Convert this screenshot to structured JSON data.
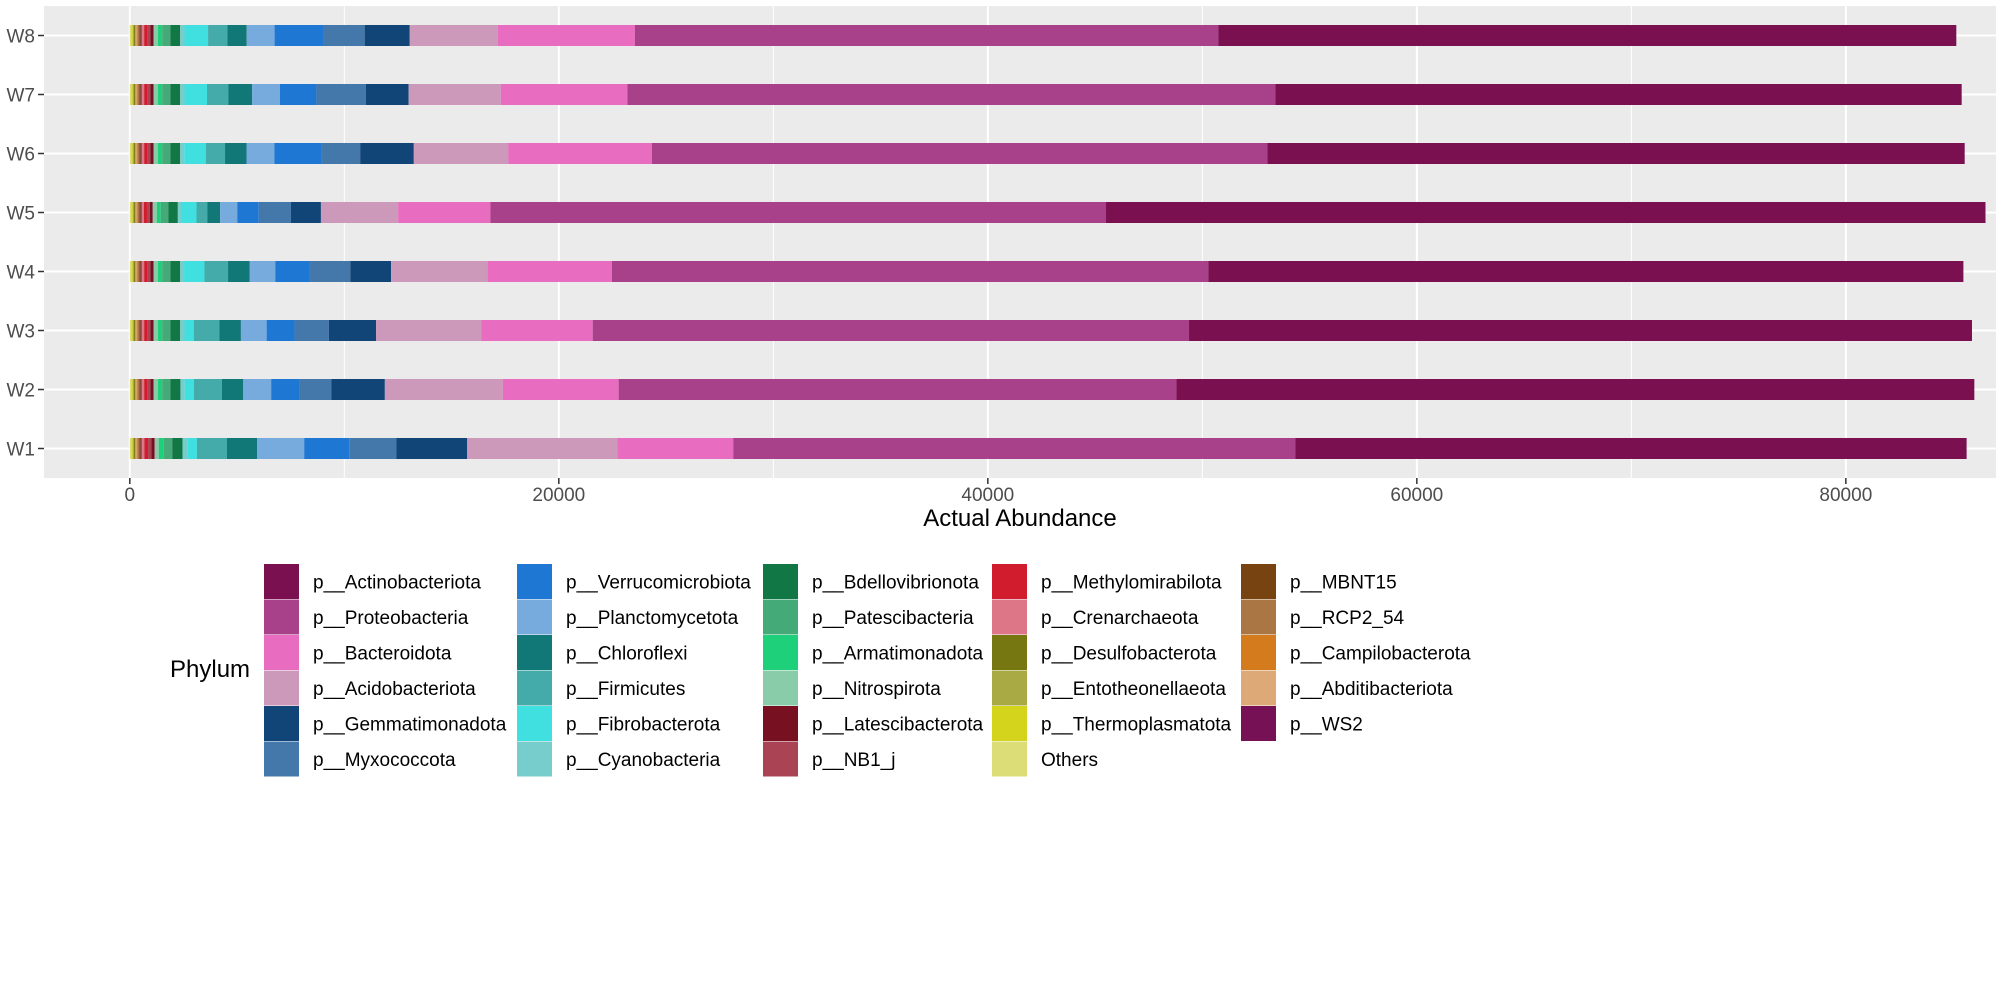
{
  "chart_data": {
    "type": "bar",
    "orientation": "horizontal",
    "stacked": true,
    "xlabel": "Actual Abundance",
    "ylabel": "",
    "xlim": [
      -4000,
      87000
    ],
    "xticks": [
      0,
      20000,
      40000,
      60000,
      80000
    ],
    "xtick_labels": [
      "0",
      "20000",
      "40000",
      "60000",
      "80000"
    ],
    "categories": [
      "W1",
      "W2",
      "W3",
      "W4",
      "W5",
      "W6",
      "W7",
      "W8"
    ],
    "grid": true,
    "legend": {
      "title": "Phylum",
      "placement": "bottom",
      "columns": 5,
      "entries": [
        {
          "label": "p__Actinobacteriota",
          "color": "#7a1050"
        },
        {
          "label": "p__Proteobacteria",
          "color": "#a8408a"
        },
        {
          "label": "p__Bacteroidota",
          "color": "#e86cc0"
        },
        {
          "label": "p__Acidobacteriota",
          "color": "#cc99bb"
        },
        {
          "label": "p__Gemmatimonadota",
          "color": "#114477"
        },
        {
          "label": "p__Myxococcota",
          "color": "#4477aa"
        },
        {
          "label": "p__Verrucomicrobiota",
          "color": "#1f77d4"
        },
        {
          "label": "p__Planctomycetota",
          "color": "#77aadd"
        },
        {
          "label": "p__Chloroflexi",
          "color": "#117777"
        },
        {
          "label": "p__Firmicutes",
          "color": "#44aaaa"
        },
        {
          "label": "p__Fibrobacterota",
          "color": "#40e0e0"
        },
        {
          "label": "p__Cyanobacteria",
          "color": "#77cccc"
        },
        {
          "label": "p__Bdellovibrionota",
          "color": "#117744"
        },
        {
          "label": "p__Patescibacteria",
          "color": "#44aa77"
        },
        {
          "label": "p__Armatimonadota",
          "color": "#1ed07a"
        },
        {
          "label": "p__Nitrospirota",
          "color": "#88ccaa"
        },
        {
          "label": "p__Latescibacterota",
          "color": "#771122"
        },
        {
          "label": "p__NB1_j",
          "color": "#aa4455"
        },
        {
          "label": "p__Methylomirabilota",
          "color": "#d01c2c"
        },
        {
          "label": "p__Crenarchaeota",
          "color": "#dd7788"
        },
        {
          "label": "p__Desulfobacterota",
          "color": "#777711"
        },
        {
          "label": "p__Entotheonellaeota",
          "color": "#aaaa44"
        },
        {
          "label": "p__Thermoplasmatota",
          "color": "#d4d41c"
        },
        {
          "label": "Others",
          "color": "#dddd77"
        },
        {
          "label": "p__MBNT15",
          "color": "#774411"
        },
        {
          "label": "p__RCP2_54",
          "color": "#aa7744"
        },
        {
          "label": "p__Campilobacterota",
          "color": "#d47b1e"
        },
        {
          "label": "p__Abditibacteriota",
          "color": "#ddaa77"
        },
        {
          "label": "p__WS2",
          "color": "#771155"
        }
      ]
    },
    "series": [
      {
        "name": "Others",
        "values": [
          80,
          80,
          80,
          80,
          80,
          80,
          80,
          80
        ]
      },
      {
        "name": "p__Thermoplasmatota",
        "values": [
          60,
          60,
          60,
          60,
          60,
          60,
          60,
          60
        ]
      },
      {
        "name": "p__Entotheonellaeota",
        "values": [
          60,
          60,
          60,
          60,
          60,
          60,
          60,
          60
        ]
      },
      {
        "name": "p__Desulfobacterota",
        "values": [
          60,
          60,
          60,
          60,
          60,
          60,
          60,
          60
        ]
      },
      {
        "name": "p__Abditibacteriota",
        "values": [
          60,
          60,
          60,
          60,
          60,
          60,
          60,
          60
        ]
      },
      {
        "name": "p__Campilobacterota",
        "values": [
          50,
          50,
          50,
          50,
          50,
          50,
          50,
          50
        ]
      },
      {
        "name": "p__RCP2_54",
        "values": [
          80,
          80,
          80,
          80,
          80,
          80,
          80,
          80
        ]
      },
      {
        "name": "p__MBNT15",
        "values": [
          60,
          60,
          60,
          60,
          60,
          60,
          60,
          60
        ]
      },
      {
        "name": "p__WS2",
        "values": [
          40,
          40,
          40,
          40,
          40,
          40,
          40,
          40
        ]
      },
      {
        "name": "p__Crenarchaeota",
        "values": [
          130,
          120,
          120,
          120,
          110,
          120,
          120,
          120
        ]
      },
      {
        "name": "p__Methylomirabilota",
        "values": [
          170,
          150,
          150,
          150,
          140,
          150,
          150,
          150
        ]
      },
      {
        "name": "p__NB1_j",
        "values": [
          150,
          140,
          140,
          140,
          130,
          140,
          140,
          140
        ]
      },
      {
        "name": "p__Latescibacterota",
        "values": [
          160,
          150,
          150,
          150,
          140,
          150,
          150,
          150
        ]
      },
      {
        "name": "p__Nitrospirota",
        "values": [
          200,
          200,
          200,
          200,
          190,
          200,
          200,
          200
        ]
      },
      {
        "name": "p__Armatimonadota",
        "values": [
          220,
          200,
          200,
          200,
          180,
          200,
          200,
          200
        ]
      },
      {
        "name": "p__Patescibacteria",
        "values": [
          400,
          380,
          380,
          380,
          360,
          380,
          380,
          380
        ]
      },
      {
        "name": "p__Bdellovibrionota",
        "values": [
          480,
          470,
          460,
          460,
          440,
          460,
          460,
          460
        ]
      },
      {
        "name": "p__Cyanobacteria",
        "values": [
          220,
          200,
          200,
          180,
          170,
          190,
          200,
          200
        ]
      },
      {
        "name": "p__Fibrobacterota",
        "values": [
          450,
          430,
          430,
          950,
          700,
          1000,
          1050,
          1100
        ]
      },
      {
        "name": "p__Firmicutes",
        "values": [
          1400,
          1300,
          1200,
          1100,
          500,
          900,
          1000,
          900
        ]
      },
      {
        "name": "p__Chloroflexi",
        "values": [
          1400,
          1000,
          1000,
          1000,
          600,
          1000,
          1100,
          900
        ]
      },
      {
        "name": "p__Planctomycetota",
        "values": [
          2200,
          1300,
          1200,
          1200,
          800,
          1300,
          1300,
          1300
        ]
      },
      {
        "name": "p__Verrucomicrobiota",
        "values": [
          2100,
          1300,
          1300,
          1600,
          1000,
          2200,
          1700,
          2300
        ]
      },
      {
        "name": "p__Myxococcota",
        "values": [
          2200,
          1500,
          1600,
          1900,
          1500,
          1800,
          2300,
          1900
        ]
      },
      {
        "name": "p__Gemmatimonadota",
        "values": [
          3300,
          2500,
          2200,
          1900,
          1400,
          2500,
          2000,
          2100
        ]
      },
      {
        "name": "p__Acidobacteriota",
        "values": [
          7000,
          5500,
          4900,
          4500,
          3600,
          4400,
          4300,
          4100
        ]
      },
      {
        "name": "p__Bacteroidota",
        "values": [
          5400,
          5400,
          5200,
          5800,
          4300,
          6700,
          5900,
          6400
        ]
      },
      {
        "name": "p__Proteobacteria",
        "values": [
          26200,
          26000,
          27800,
          27800,
          28700,
          28700,
          30200,
          27200
        ]
      },
      {
        "name": "p__Actinobacteriota",
        "values": [
          31300,
          37200,
          36500,
          35200,
          41000,
          32500,
          32000,
          34400
        ]
      }
    ]
  }
}
